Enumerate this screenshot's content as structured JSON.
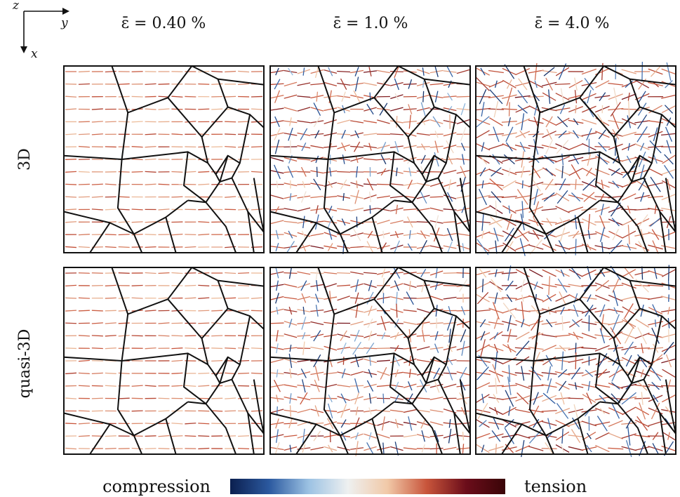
{
  "axes_indicator": {
    "z": "z",
    "y": "y",
    "x": "x"
  },
  "columns": [
    {
      "title": "ε̄ = 0.40 %",
      "strain_percent": 0.4
    },
    {
      "title": "ε̄ = 1.0 %",
      "strain_percent": 1.0
    },
    {
      "title": "ε̄ = 4.0 %",
      "strain_percent": 4.0
    }
  ],
  "rows": [
    {
      "label": "3D"
    },
    {
      "label": "quasi-3D"
    }
  ],
  "colorbar": {
    "left_label": "compression",
    "right_label": "tension",
    "stops": [
      "#0b1f4f",
      "#2c5aa0",
      "#9cc2e3",
      "#eef0f0",
      "#f1c9a8",
      "#c8553b",
      "#6b0d1a",
      "#3a0508"
    ]
  },
  "colors": {
    "grain_boundary": "#111111",
    "frame": "#111111"
  }
}
